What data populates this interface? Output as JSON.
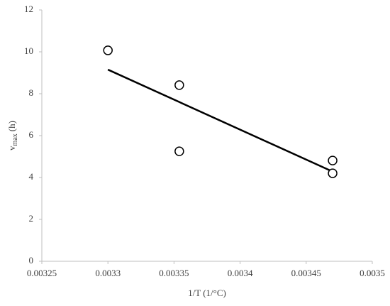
{
  "chart_data": {
    "type": "scatter",
    "x_label": "1/T (1/°C)",
    "y_label": {
      "main": "v",
      "sub": "max",
      "unit": "(h)"
    },
    "series": [
      {
        "x": [
          0.0033,
          0.003354,
          0.003354,
          0.00347,
          0.00347
        ],
        "values": [
          10.07,
          8.41,
          5.25,
          4.81,
          4.2
        ],
        "color": "#000000"
      }
    ],
    "trendline": {
      "x": [
        0.0033,
        0.003468
      ],
      "values": [
        9.15,
        4.34
      ],
      "color": "#000000"
    },
    "xlim": [
      0.00325,
      0.0035
    ],
    "xticks": [
      0.00325,
      0.0033,
      0.00335,
      0.0034,
      0.00345,
      0.0035
    ],
    "ylim": [
      0,
      12
    ],
    "yticks": [
      0,
      2,
      4,
      6,
      8,
      10,
      12
    ]
  }
}
